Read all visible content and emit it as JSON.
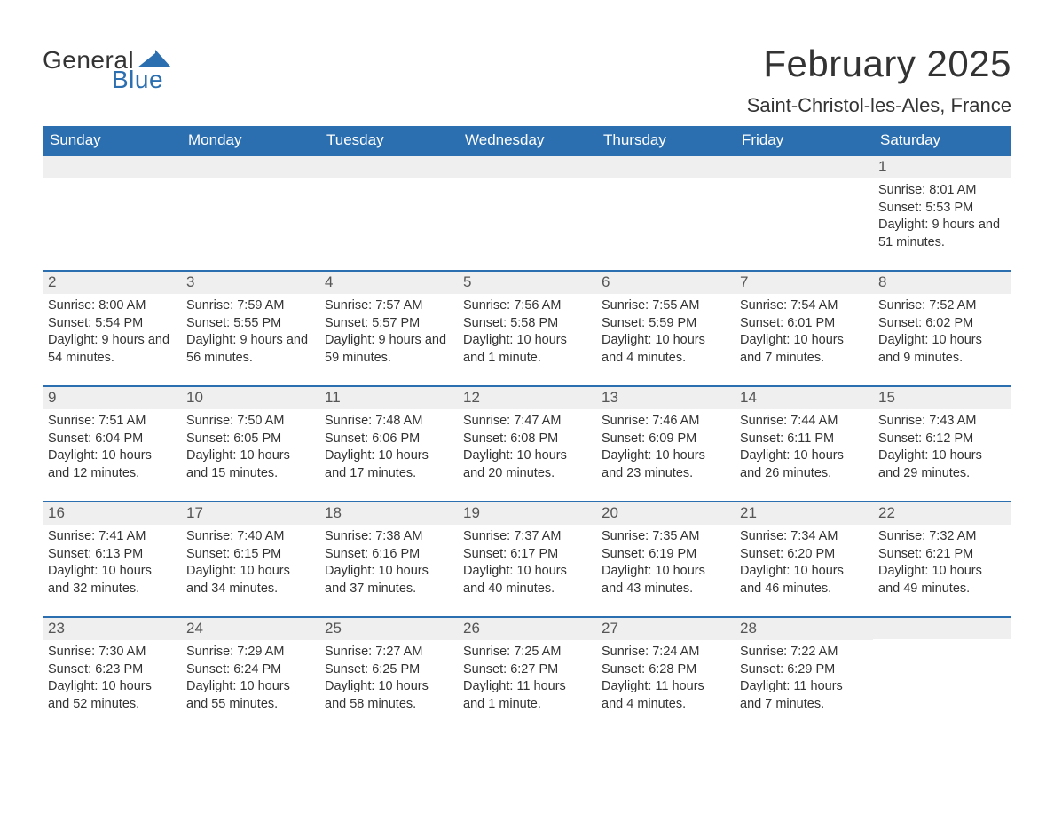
{
  "brand": {
    "general": "General",
    "blue": "Blue",
    "mark_color": "#2b6fb0"
  },
  "title": "February 2025",
  "location": "Saint-Christol-les-Ales, France",
  "colors": {
    "header_bg": "#2b6fb0",
    "header_text": "#ffffff",
    "daynum_bg": "#efefef",
    "rule": "#2b6fb0",
    "text": "#333333",
    "background": "#ffffff"
  },
  "typography": {
    "title_fontsize_pt": 32,
    "location_fontsize_pt": 17,
    "dayheader_fontsize_pt": 13,
    "body_fontsize_pt": 11
  },
  "layout": {
    "columns": 7,
    "rows": 5,
    "start_day_index": 6
  },
  "day_headers": [
    "Sunday",
    "Monday",
    "Tuesday",
    "Wednesday",
    "Thursday",
    "Friday",
    "Saturday"
  ],
  "weeks": [
    [
      {
        "empty": true
      },
      {
        "empty": true
      },
      {
        "empty": true
      },
      {
        "empty": true
      },
      {
        "empty": true
      },
      {
        "empty": true
      },
      {
        "day": "1",
        "sunrise": "Sunrise: 8:01 AM",
        "sunset": "Sunset: 5:53 PM",
        "daylight": "Daylight: 9 hours and 51 minutes."
      }
    ],
    [
      {
        "day": "2",
        "sunrise": "Sunrise: 8:00 AM",
        "sunset": "Sunset: 5:54 PM",
        "daylight": "Daylight: 9 hours and 54 minutes."
      },
      {
        "day": "3",
        "sunrise": "Sunrise: 7:59 AM",
        "sunset": "Sunset: 5:55 PM",
        "daylight": "Daylight: 9 hours and 56 minutes."
      },
      {
        "day": "4",
        "sunrise": "Sunrise: 7:57 AM",
        "sunset": "Sunset: 5:57 PM",
        "daylight": "Daylight: 9 hours and 59 minutes."
      },
      {
        "day": "5",
        "sunrise": "Sunrise: 7:56 AM",
        "sunset": "Sunset: 5:58 PM",
        "daylight": "Daylight: 10 hours and 1 minute."
      },
      {
        "day": "6",
        "sunrise": "Sunrise: 7:55 AM",
        "sunset": "Sunset: 5:59 PM",
        "daylight": "Daylight: 10 hours and 4 minutes."
      },
      {
        "day": "7",
        "sunrise": "Sunrise: 7:54 AM",
        "sunset": "Sunset: 6:01 PM",
        "daylight": "Daylight: 10 hours and 7 minutes."
      },
      {
        "day": "8",
        "sunrise": "Sunrise: 7:52 AM",
        "sunset": "Sunset: 6:02 PM",
        "daylight": "Daylight: 10 hours and 9 minutes."
      }
    ],
    [
      {
        "day": "9",
        "sunrise": "Sunrise: 7:51 AM",
        "sunset": "Sunset: 6:04 PM",
        "daylight": "Daylight: 10 hours and 12 minutes."
      },
      {
        "day": "10",
        "sunrise": "Sunrise: 7:50 AM",
        "sunset": "Sunset: 6:05 PM",
        "daylight": "Daylight: 10 hours and 15 minutes."
      },
      {
        "day": "11",
        "sunrise": "Sunrise: 7:48 AM",
        "sunset": "Sunset: 6:06 PM",
        "daylight": "Daylight: 10 hours and 17 minutes."
      },
      {
        "day": "12",
        "sunrise": "Sunrise: 7:47 AM",
        "sunset": "Sunset: 6:08 PM",
        "daylight": "Daylight: 10 hours and 20 minutes."
      },
      {
        "day": "13",
        "sunrise": "Sunrise: 7:46 AM",
        "sunset": "Sunset: 6:09 PM",
        "daylight": "Daylight: 10 hours and 23 minutes."
      },
      {
        "day": "14",
        "sunrise": "Sunrise: 7:44 AM",
        "sunset": "Sunset: 6:11 PM",
        "daylight": "Daylight: 10 hours and 26 minutes."
      },
      {
        "day": "15",
        "sunrise": "Sunrise: 7:43 AM",
        "sunset": "Sunset: 6:12 PM",
        "daylight": "Daylight: 10 hours and 29 minutes."
      }
    ],
    [
      {
        "day": "16",
        "sunrise": "Sunrise: 7:41 AM",
        "sunset": "Sunset: 6:13 PM",
        "daylight": "Daylight: 10 hours and 32 minutes."
      },
      {
        "day": "17",
        "sunrise": "Sunrise: 7:40 AM",
        "sunset": "Sunset: 6:15 PM",
        "daylight": "Daylight: 10 hours and 34 minutes."
      },
      {
        "day": "18",
        "sunrise": "Sunrise: 7:38 AM",
        "sunset": "Sunset: 6:16 PM",
        "daylight": "Daylight: 10 hours and 37 minutes."
      },
      {
        "day": "19",
        "sunrise": "Sunrise: 7:37 AM",
        "sunset": "Sunset: 6:17 PM",
        "daylight": "Daylight: 10 hours and 40 minutes."
      },
      {
        "day": "20",
        "sunrise": "Sunrise: 7:35 AM",
        "sunset": "Sunset: 6:19 PM",
        "daylight": "Daylight: 10 hours and 43 minutes."
      },
      {
        "day": "21",
        "sunrise": "Sunrise: 7:34 AM",
        "sunset": "Sunset: 6:20 PM",
        "daylight": "Daylight: 10 hours and 46 minutes."
      },
      {
        "day": "22",
        "sunrise": "Sunrise: 7:32 AM",
        "sunset": "Sunset: 6:21 PM",
        "daylight": "Daylight: 10 hours and 49 minutes."
      }
    ],
    [
      {
        "day": "23",
        "sunrise": "Sunrise: 7:30 AM",
        "sunset": "Sunset: 6:23 PM",
        "daylight": "Daylight: 10 hours and 52 minutes."
      },
      {
        "day": "24",
        "sunrise": "Sunrise: 7:29 AM",
        "sunset": "Sunset: 6:24 PM",
        "daylight": "Daylight: 10 hours and 55 minutes."
      },
      {
        "day": "25",
        "sunrise": "Sunrise: 7:27 AM",
        "sunset": "Sunset: 6:25 PM",
        "daylight": "Daylight: 10 hours and 58 minutes."
      },
      {
        "day": "26",
        "sunrise": "Sunrise: 7:25 AM",
        "sunset": "Sunset: 6:27 PM",
        "daylight": "Daylight: 11 hours and 1 minute."
      },
      {
        "day": "27",
        "sunrise": "Sunrise: 7:24 AM",
        "sunset": "Sunset: 6:28 PM",
        "daylight": "Daylight: 11 hours and 4 minutes."
      },
      {
        "day": "28",
        "sunrise": "Sunrise: 7:22 AM",
        "sunset": "Sunset: 6:29 PM",
        "daylight": "Daylight: 11 hours and 7 minutes."
      },
      {
        "empty": true
      }
    ]
  ]
}
